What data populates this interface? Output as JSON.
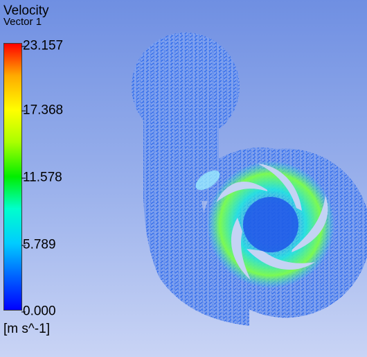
{
  "legend": {
    "title": "Velocity",
    "subtitle": "Vector 1",
    "ticks": [
      "23.157",
      "17.368",
      "11.578",
      "5.789",
      "0.000"
    ],
    "units": "[m s^-1]"
  },
  "colors": {
    "background_top": "#6f8fe2",
    "background_bottom": "#c9d4f5",
    "vector_low": "#1f5ee8",
    "vector_mid": "#22e6e0",
    "vector_high": "#a6ff00",
    "blade": "#c4d3f4"
  }
}
